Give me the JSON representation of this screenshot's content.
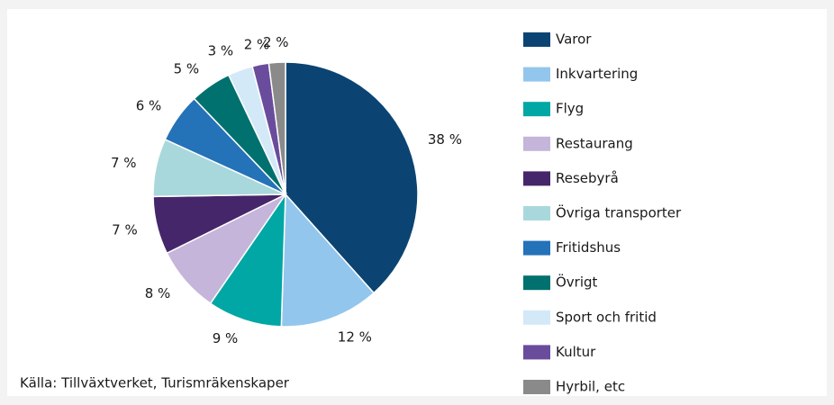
{
  "chart_data": {
    "type": "pie",
    "categories": [
      "Varor",
      "Inkvartering",
      "Flyg",
      "Restaurang",
      "Resebyrå",
      "Övriga transporter",
      "Fritidshus",
      "Övrigt",
      "Sport och fritid",
      "Kultur",
      "Hyrbil, etc"
    ],
    "values": [
      38,
      12,
      9,
      8,
      7,
      7,
      6,
      5,
      3,
      2,
      2
    ],
    "value_labels": [
      "38 %",
      "12 %",
      "9 %",
      "8 %",
      "7 %",
      "7 %",
      "6 %",
      "5 %",
      "3 %",
      "2 %",
      "2 %"
    ],
    "colors": [
      "#0b4472",
      "#93c6ec",
      "#00a7a5",
      "#c5b5da",
      "#46266a",
      "#a9d8dc",
      "#2472b8",
      "#00716e",
      "#d3e9f7",
      "#6a4c9c",
      "#8a8a8a"
    ],
    "legend": "right",
    "source": "Källa: Tillväxtverket, Turismräkenskaper"
  }
}
